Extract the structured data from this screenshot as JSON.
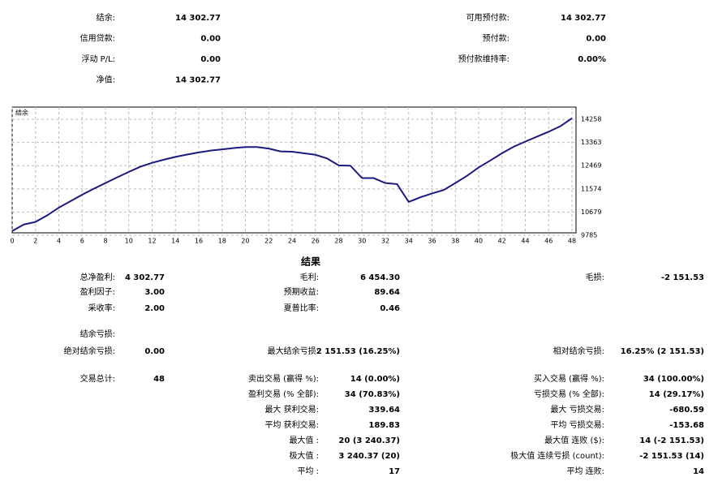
{
  "summary": {
    "left": [
      [
        "结余:",
        "14 302.77"
      ],
      [
        "信用贷款:",
        "0.00"
      ],
      [
        "浮动 P/L:",
        "0.00"
      ],
      [
        "净值:",
        "14 302.77"
      ]
    ],
    "right": [
      [
        "可用预付款:",
        "14 302.77"
      ],
      [
        "预付款:",
        "0.00"
      ],
      [
        "预付款维持率:",
        "0.00%"
      ]
    ]
  },
  "chart_data": {
    "type": "line",
    "title": "结余",
    "x": [
      0,
      1,
      2,
      3,
      4,
      5,
      6,
      7,
      8,
      9,
      10,
      11,
      12,
      13,
      14,
      15,
      16,
      17,
      18,
      19,
      20,
      21,
      22,
      23,
      24,
      25,
      26,
      27,
      28,
      29,
      30,
      31,
      32,
      33,
      34,
      35,
      36,
      37,
      38,
      39,
      40,
      41,
      42,
      43,
      44,
      45,
      46,
      47,
      48
    ],
    "series": [
      {
        "name": "结余",
        "color": "#1a1a80",
        "values": [
          9950,
          10200,
          10300,
          10550,
          10850,
          11100,
          11350,
          11580,
          11800,
          12020,
          12230,
          12430,
          12580,
          12700,
          12810,
          12900,
          12980,
          13050,
          13100,
          13150,
          13190,
          13190,
          13130,
          13020,
          13010,
          12950,
          12890,
          12750,
          12480,
          12470,
          11990,
          11990,
          11800,
          11760,
          11070,
          11250,
          11400,
          11530,
          11800,
          12080,
          12400,
          12670,
          12950,
          13200,
          13400,
          13590,
          13780,
          13990,
          14300
        ]
      }
    ],
    "xlim": [
      0,
      48
    ],
    "ylim": [
      9785,
      14730
    ],
    "xticks": [
      0,
      2,
      4,
      6,
      8,
      10,
      12,
      14,
      16,
      18,
      20,
      22,
      24,
      26,
      28,
      30,
      32,
      34,
      36,
      38,
      40,
      42,
      44,
      46,
      48
    ],
    "yticks": [
      9785,
      10679,
      11574,
      12469,
      13363,
      14258
    ],
    "grid": true
  },
  "results": {
    "title": "结果",
    "rows": [
      {
        "c1": [
          "总净盈利:",
          "4 302.77"
        ],
        "c2": [
          "毛利:",
          "6 454.30"
        ],
        "c3": [
          "毛损:",
          "-2 151.53"
        ]
      },
      {
        "c1": [
          "盈利因子:",
          "3.00"
        ],
        "c2": [
          "预期收益:",
          "89.64"
        ]
      },
      {
        "c1": [
          "采收率:",
          "2.00"
        ],
        "c2": [
          "夏普比率:",
          "0.46"
        ]
      },
      {
        "c1": [
          "结余亏损:"
        ]
      },
      {
        "c1": [
          "绝对结余亏损:",
          "0.00"
        ],
        "c2": [
          "最大结余亏损:",
          "2 151.53 (16.25%)"
        ],
        "c3": [
          "相对结余亏损:",
          "16.25% (2 151.53)"
        ]
      },
      {
        "c1": [
          "交易总计:",
          "48"
        ],
        "c2": [
          "卖出交易 (赢得 %):",
          "14 (0.00%)"
        ],
        "c3": [
          "买入交易 (赢得 %):",
          "34 (100.00%)"
        ]
      },
      {
        "c2": [
          "盈利交易 (% 全部):",
          "34 (70.83%)"
        ],
        "c3": [
          "亏损交易 (% 全部):",
          "14 (29.17%)"
        ]
      },
      {
        "c2": [
          "最大 获利交易:",
          "339.64"
        ],
        "c3": [
          "最大 亏损交易:",
          "-680.59"
        ]
      },
      {
        "c2": [
          "平均 获利交易:",
          "189.83"
        ],
        "c3": [
          "平均 亏损交易:",
          "-153.68"
        ]
      },
      {
        "c2": [
          "最大值 :",
          "20 (3 240.37)"
        ],
        "c3": [
          "最大值 连败 ($):",
          "14 (-2 151.53)"
        ]
      },
      {
        "c2": [
          "极大值 :",
          "3 240.37 (20)"
        ],
        "c3": [
          "极大值 连续亏损 (count):",
          "-2 151.53 (14)"
        ]
      },
      {
        "c2": [
          "平均 :",
          "17"
        ],
        "c3": [
          "平均 连败:",
          "14"
        ]
      }
    ]
  }
}
